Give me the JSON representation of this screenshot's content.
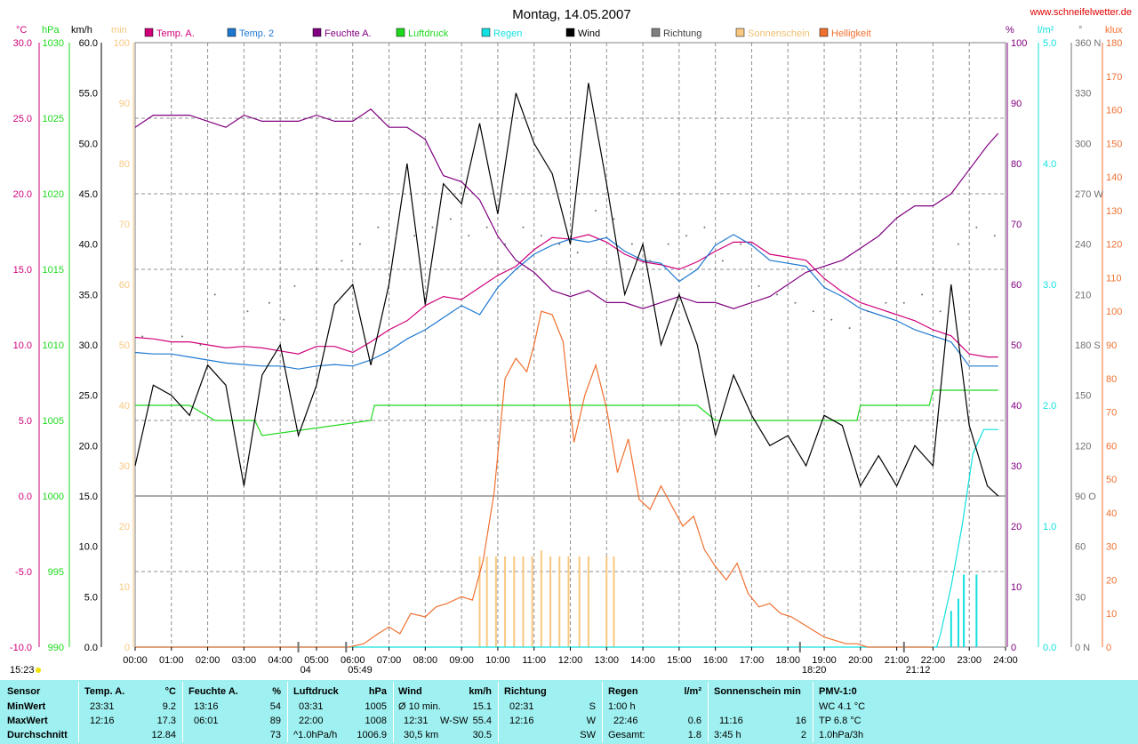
{
  "header": {
    "title": "Montag, 14.05.2007",
    "site": "www.schneifelwetter.de",
    "time_stamp": "15:23"
  },
  "colors": {
    "temp_a": "#d0007a",
    "temp_2": "#1e78d0",
    "feuchte": "#800080",
    "luftdruck": "#1ed81e",
    "regen": "#12e0e0",
    "wind": "#000000",
    "richtung": "#707070",
    "sonnenschein": "#f8c880",
    "helligkeit": "#f07030"
  },
  "legend": [
    {
      "label": "Temp. A.",
      "color": "#d0007a"
    },
    {
      "label": "Temp. 2",
      "color": "#1e78d0"
    },
    {
      "label": "Feuchte A.",
      "color": "#800080"
    },
    {
      "label": "Luftdruck",
      "color": "#1ed81e"
    },
    {
      "label": "Regen",
      "color": "#12e0e0"
    },
    {
      "label": "Wind",
      "color": "#000000"
    },
    {
      "label": "Richtung",
      "color": "#808080"
    },
    {
      "label": "Sonnenschein",
      "color": "#f8c880"
    },
    {
      "label": "Helligkeit",
      "color": "#f07030"
    }
  ],
  "chart_data": {
    "type": "line",
    "x_ticks": [
      "00:00",
      "01:00",
      "02:00",
      "03:00",
      "04:00",
      "05:00",
      "06:00",
      "07:00",
      "08:00",
      "09:00",
      "10:00",
      "11:00",
      "12:00",
      "13:00",
      "14:00",
      "15:00",
      "16:00",
      "17:00",
      "18:00",
      "19:00",
      "20:00",
      "21:00",
      "22:00",
      "23:00",
      "24:00"
    ],
    "axes": {
      "temp": {
        "unit": "°C",
        "range": [
          -10,
          30
        ],
        "ticks": [
          "30.0",
          "25.0",
          "20.0",
          "15.0",
          "10.0",
          "5.0",
          "0.0",
          "-5.0",
          "-10.0"
        ]
      },
      "pressure": {
        "unit": "hPa",
        "range": [
          990,
          1030
        ],
        "ticks": [
          "1030",
          "1025",
          "1020",
          "1015",
          "1010",
          "1005",
          "1000",
          "995",
          "990"
        ]
      },
      "wind": {
        "unit": "km/h",
        "range": [
          0,
          60
        ],
        "ticks": [
          "60.0",
          "55.0",
          "50.0",
          "45.0",
          "40.0",
          "35.0",
          "30.0",
          "25.0",
          "20.0",
          "15.0",
          "10.0",
          "5.0",
          "0.0"
        ]
      },
      "sun": {
        "unit": "min",
        "range": [
          0,
          100
        ],
        "ticks": [
          "100",
          "90",
          "80",
          "70",
          "60",
          "50",
          "40",
          "30",
          "20",
          "10",
          "0"
        ]
      },
      "humidity": {
        "unit": "%",
        "range": [
          0,
          100
        ],
        "ticks": [
          "100",
          "90",
          "80",
          "70",
          "60",
          "50",
          "40",
          "30",
          "20",
          "10",
          "0"
        ]
      },
      "rain": {
        "unit": "l/m²",
        "range": [
          0,
          5
        ],
        "ticks": [
          "5.0",
          "4.0",
          "3.0",
          "2.0",
          "1.0",
          "0.0"
        ]
      },
      "direction": {
        "unit": "°",
        "range": [
          0,
          360
        ],
        "ticks": [
          "360 N",
          "330",
          "300",
          "270 W",
          "240",
          "210",
          "180 S",
          "150",
          "120",
          "90 O",
          "60",
          "30",
          "0 N"
        ]
      },
      "light": {
        "unit": "klux",
        "range": [
          0,
          180
        ],
        "ticks": [
          "180",
          "170",
          "160",
          "150",
          "140",
          "130",
          "120",
          "110",
          "100",
          "90",
          "80",
          "70",
          "60",
          "50",
          "40",
          "30",
          "20",
          "10",
          "0"
        ]
      }
    },
    "markers": [
      {
        "time": "04:30",
        "label": "04"
      },
      {
        "time": "05:49",
        "label": "05:49"
      },
      {
        "time": "18:20",
        "label": "18:20"
      },
      {
        "time": "21:12",
        "label": "21:12"
      }
    ],
    "series": [
      {
        "name": "Temp. A.",
        "axis": "temp",
        "color": "#d0007a",
        "x": [
          0,
          0.5,
          1,
          1.5,
          2,
          2.5,
          3,
          3.5,
          4,
          4.5,
          5,
          5.5,
          6,
          6.5,
          7,
          7.5,
          8,
          8.5,
          9,
          9.5,
          10,
          10.5,
          11,
          11.5,
          12,
          12.5,
          13,
          13.5,
          14,
          14.5,
          15,
          15.5,
          16,
          16.5,
          17,
          17.5,
          18,
          18.5,
          19,
          19.5,
          20,
          20.5,
          21,
          21.5,
          22,
          22.5,
          23,
          23.5,
          23.8
        ],
        "y": [
          10.5,
          10.4,
          10.2,
          10.2,
          10.0,
          9.8,
          9.9,
          9.8,
          9.6,
          9.4,
          9.9,
          9.9,
          9.5,
          10.2,
          11.0,
          11.6,
          12.6,
          13.2,
          13.0,
          13.8,
          14.6,
          15.2,
          16.3,
          17.1,
          17.0,
          17.3,
          16.8,
          16.0,
          15.5,
          15.3,
          15.0,
          15.5,
          16.2,
          16.8,
          16.8,
          16.0,
          15.8,
          15.6,
          14.4,
          13.5,
          12.8,
          12.4,
          12.0,
          11.6,
          11.0,
          10.6,
          9.4,
          9.2,
          9.2
        ]
      },
      {
        "name": "Temp. 2",
        "axis": "temp",
        "color": "#1e78d0",
        "x": [
          0,
          0.5,
          1,
          1.5,
          2,
          2.5,
          3,
          3.5,
          4,
          4.5,
          5,
          5.5,
          6,
          6.5,
          7,
          7.5,
          8,
          8.5,
          9,
          9.5,
          10,
          10.5,
          11,
          11.5,
          12,
          12.5,
          13,
          13.5,
          14,
          14.5,
          15,
          15.5,
          16,
          16.5,
          17,
          17.5,
          18,
          18.5,
          19,
          19.5,
          20,
          20.5,
          21,
          21.5,
          22,
          22.5,
          23,
          23.5,
          23.8
        ],
        "y": [
          9.5,
          9.4,
          9.4,
          9.2,
          9.0,
          8.8,
          8.7,
          8.6,
          8.6,
          8.4,
          8.6,
          8.7,
          8.6,
          9.0,
          9.6,
          10.4,
          11.0,
          11.8,
          12.6,
          12.0,
          13.8,
          15.0,
          16.0,
          16.6,
          17.0,
          16.8,
          17.1,
          16.2,
          15.6,
          15.4,
          14.2,
          15.0,
          16.6,
          17.3,
          16.6,
          15.6,
          15.4,
          15.2,
          13.8,
          13.2,
          12.4,
          12.0,
          11.6,
          11.0,
          10.6,
          10.2,
          8.6,
          8.6,
          8.6
        ]
      },
      {
        "name": "Feuchte A.",
        "axis": "humidity",
        "color": "#800080",
        "x": [
          0,
          0.5,
          1,
          1.5,
          2,
          2.5,
          3,
          3.5,
          4,
          4.5,
          5,
          5.5,
          6,
          6.5,
          7,
          7.5,
          8,
          8.5,
          9,
          9.5,
          10,
          10.5,
          11,
          11.5,
          12,
          12.5,
          13,
          13.5,
          14,
          14.5,
          15,
          15.5,
          16,
          16.5,
          17,
          17.5,
          18,
          18.5,
          19,
          19.5,
          20,
          20.5,
          21,
          21.5,
          22,
          22.5,
          23,
          23.5,
          23.8
        ],
        "y": [
          86,
          88,
          88,
          88,
          87,
          86,
          88,
          87,
          87,
          87,
          88,
          87,
          87,
          89,
          86,
          86,
          84,
          78,
          77,
          74,
          68,
          64,
          62,
          59,
          58,
          59,
          57,
          57,
          56,
          57,
          58,
          57,
          57,
          56,
          57,
          58,
          60,
          62,
          63,
          64,
          66,
          68,
          71,
          73,
          73,
          75,
          79,
          83,
          85
        ]
      },
      {
        "name": "Luftdruck",
        "axis": "pressure",
        "color": "#1ed81e",
        "x": [
          0,
          1.5,
          2.2,
          3.3,
          3.5,
          6.5,
          6.6,
          15.5,
          16.0,
          16.5,
          19.9,
          20.0,
          21.9,
          22.0,
          23.8
        ],
        "y": [
          1006,
          1006,
          1005,
          1005,
          1004,
          1005,
          1006,
          1006,
          1005,
          1005,
          1005,
          1006,
          1006,
          1007,
          1007
        ]
      },
      {
        "name": "Regen",
        "axis": "rain",
        "color": "#12e0e0",
        "x": [
          0,
          22.1,
          22.2,
          22.5,
          22.8,
          23.1,
          23.4,
          23.8
        ],
        "y": [
          0,
          0,
          0.1,
          0.5,
          1.0,
          1.6,
          1.8,
          1.8
        ]
      },
      {
        "name": "Wind",
        "axis": "wind",
        "color": "#000000",
        "x": [
          0,
          0.5,
          1,
          1.5,
          2,
          2.5,
          3,
          3.5,
          4,
          4.5,
          5,
          5.5,
          6,
          6.5,
          7,
          7.5,
          8,
          8.5,
          9,
          9.5,
          10,
          10.5,
          11,
          11.5,
          12,
          12.5,
          13,
          13.5,
          14,
          14.5,
          15,
          15.5,
          16,
          16.5,
          17,
          17.5,
          18,
          18.5,
          19,
          19.5,
          20,
          20.5,
          21,
          21.5,
          22,
          22.5,
          23,
          23.5,
          23.8
        ],
        "y": [
          18,
          26,
          25,
          23,
          28,
          26,
          16,
          27,
          30,
          21,
          26,
          34,
          36,
          28,
          36,
          48,
          34,
          46,
          44,
          52,
          43,
          55,
          50,
          47,
          40,
          56,
          46,
          35,
          40,
          30,
          35,
          30,
          21,
          27,
          23,
          20,
          21,
          18,
          23,
          22,
          16,
          19,
          16,
          20,
          18,
          36,
          22,
          16,
          15
        ]
      },
      {
        "name": "Richtung",
        "axis": "direction",
        "color": "#707070",
        "x": [
          0.2,
          1.3,
          1.8,
          2.2,
          3.1,
          3.7,
          4.1,
          4.4,
          5,
          5.7,
          6.2,
          6.7,
          7.2,
          7.7,
          8.2,
          8.7,
          9.2,
          9.7,
          10.2,
          10.7,
          11.2,
          11.7,
          12.2,
          12.7,
          13.2,
          13.7,
          14.2,
          14.7,
          15.2,
          15.7,
          16.2,
          16.7,
          17.2,
          17.7,
          18.2,
          18.7,
          19.2,
          19.7,
          20.2,
          20.7,
          21.2,
          21.7,
          22.2,
          22.7,
          23.2,
          23.7
        ],
        "y": [
          185,
          185,
          180,
          210,
          200,
          205,
          195,
          215,
          225,
          230,
          240,
          250,
          245,
          245,
          250,
          255,
          245,
          250,
          240,
          250,
          245,
          240,
          235,
          260,
          255,
          240,
          230,
          240,
          245,
          250,
          230,
          240,
          215,
          210,
          205,
          200,
          195,
          190,
          200,
          205,
          205,
          210,
          200,
          240,
          250,
          245
        ]
      },
      {
        "name": "Helligkeit",
        "axis": "light",
        "color": "#f07030",
        "x": [
          0,
          5.9,
          6.3,
          6.7,
          7.0,
          7.3,
          7.6,
          8.0,
          8.3,
          8.6,
          9.0,
          9.3,
          9.6,
          9.9,
          10.2,
          10.5,
          10.8,
          11.0,
          11.2,
          11.5,
          11.8,
          12.1,
          12.4,
          12.7,
          13.0,
          13.3,
          13.6,
          13.9,
          14.2,
          14.5,
          14.8,
          15.1,
          15.4,
          15.7,
          16.0,
          16.3,
          16.6,
          16.9,
          17.2,
          17.5,
          17.8,
          18.1,
          18.4,
          18.7,
          19.0,
          19.3,
          19.6,
          19.9,
          20.2,
          20.5,
          20.8,
          21.1,
          21.4,
          21.7,
          22.0
        ],
        "y": [
          0,
          0,
          1,
          4,
          6,
          4,
          10,
          9,
          12,
          13,
          15,
          14,
          26,
          46,
          80,
          86,
          82,
          90,
          100,
          99,
          91,
          61,
          75,
          84,
          71,
          52,
          62,
          44,
          41,
          48,
          42,
          36,
          39,
          29,
          24,
          20,
          25,
          16,
          12,
          13,
          10,
          9,
          7,
          5,
          3,
          2,
          1,
          1,
          0,
          0,
          0,
          0,
          0,
          0,
          0
        ]
      },
      {
        "name": "Sonnenschein",
        "axis": "sun",
        "type": "bar",
        "color": "#f8c880",
        "x": [
          9.5,
          9.7,
          9.95,
          10.2,
          10.45,
          10.7,
          10.95,
          11.2,
          11.45,
          11.7,
          11.95,
          12.25,
          12.5,
          13.0,
          13.2
        ],
        "y": [
          15,
          15,
          15,
          15,
          15,
          15,
          15,
          16,
          15,
          15,
          15,
          15,
          15,
          15,
          15
        ]
      },
      {
        "name": "Regen Menge",
        "axis": "rain",
        "type": "bar",
        "color": "#12e0e0",
        "x": [
          22.5,
          22.7,
          22.85,
          23.2
        ],
        "y": [
          0.3,
          0.4,
          0.6,
          0.6
        ]
      }
    ]
  },
  "table": {
    "rows": {
      "min": "MinWert",
      "max": "MaxWert",
      "avg": "Durchschnitt",
      "sensor": "Sensor"
    },
    "columns": [
      {
        "title": "Temp. A.",
        "unit": "°C",
        "min_time": "23:31",
        "min": "9.2",
        "max_time": "12:16",
        "max": "17.3",
        "avg": "12.84"
      },
      {
        "title": "Feuchte A.",
        "unit": "%",
        "min_time": "13:16",
        "min": "54",
        "max_time": "06:01",
        "max": "89",
        "avg": "73"
      },
      {
        "title": "Luftdruck",
        "unit": "hPa",
        "min_time": "03:31",
        "min": "1005",
        "max_time": "22:00",
        "max": "1008",
        "avg_label": "^1.0hPa/h",
        "avg": "1006.9"
      },
      {
        "title": "Wind",
        "unit": "km/h",
        "min_time": "Ø 10 min.",
        "min": "15.1",
        "max_time": "12:31",
        "max_dir": "W-SW",
        "max": "55.4",
        "avg_label": "30,5 km",
        "avg": "30.5"
      },
      {
        "title": "Richtung",
        "unit": "",
        "min_time": "02:31",
        "min": "S",
        "max_time": "12:16",
        "max": "W",
        "avg": "SW"
      },
      {
        "title": "Regen",
        "unit": "l/m²",
        "min_time": "1:00 h",
        "min": "",
        "max_time": "22:46",
        "max": "0.6",
        "avg_label": "Gesamt:",
        "avg": "1.8"
      },
      {
        "title": "Sonnenschein min",
        "unit": "",
        "min_time": "",
        "min": "",
        "max_time": "11:16",
        "max": "16",
        "avg_label": "3:45 h",
        "avg": "2"
      },
      {
        "title": "PMV-1:0",
        "unit": "",
        "min_time": "WC 4.1 °C",
        "max_time": "TP 6.8 °C",
        "avg_label": "1.0hPa/3h"
      }
    ]
  }
}
